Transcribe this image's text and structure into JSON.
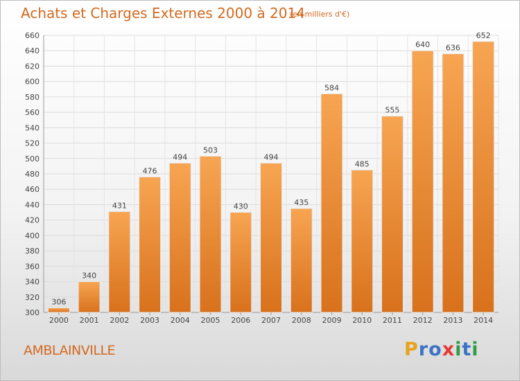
{
  "header": {
    "title": "Achats et Charges Externes 2000 à 2014",
    "subtitle": "(en milliers d'€)"
  },
  "footer": {
    "commune": "AMBLAINVILLE",
    "brand_letters": [
      "P",
      "r",
      "o",
      "x",
      "i",
      "t",
      "i"
    ],
    "brand_colors": [
      "#e8a21c",
      "#3b73c6",
      "#3b73c6",
      "#e53935",
      "#2e9c47",
      "#3b73c6",
      "#2e9c47"
    ]
  },
  "chart_data": {
    "type": "bar",
    "title": "Achats et Charges Externes 2000 à 2014",
    "subtitle": "(en milliers d'€)",
    "categories": [
      "2000",
      "2001",
      "2002",
      "2003",
      "2004",
      "2005",
      "2006",
      "2007",
      "2008",
      "2009",
      "2010",
      "2011",
      "2012",
      "2013",
      "2014"
    ],
    "values": [
      306,
      340,
      431,
      476,
      494,
      503,
      430,
      494,
      435,
      584,
      485,
      555,
      640,
      636,
      652
    ],
    "ylim": [
      300,
      660
    ],
    "yticks": [
      300,
      320,
      340,
      360,
      380,
      400,
      420,
      440,
      460,
      480,
      500,
      520,
      540,
      560,
      580,
      600,
      620,
      640,
      660
    ],
    "grid": true,
    "bar_color_top": "#f7a552",
    "bar_color_bottom": "#d8711c",
    "text_color": "#d2691e"
  }
}
